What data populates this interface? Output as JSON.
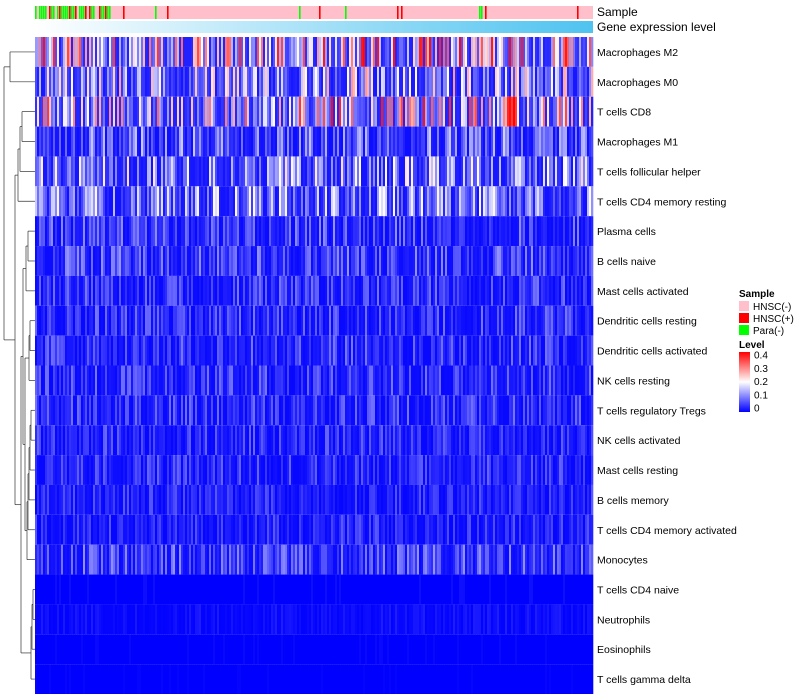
{
  "chart_data": {
    "type": "heatmap",
    "title": "",
    "annotation_tracks": [
      {
        "name": "Sample",
        "kind": "categorical"
      },
      {
        "name": "Gene expression level",
        "kind": "continuous-gradient"
      }
    ],
    "rows": [
      {
        "label": "Macrophages M2",
        "mean": 0.17
      },
      {
        "label": "Macrophages M0",
        "mean": 0.12
      },
      {
        "label": "T cells CD8",
        "mean": 0.17
      },
      {
        "label": "Macrophages M1",
        "mean": 0.07
      },
      {
        "label": "T cells follicular helper",
        "mean": 0.1
      },
      {
        "label": "T cells CD4 memory resting",
        "mean": 0.09
      },
      {
        "label": "Plasma cells",
        "mean": 0.05
      },
      {
        "label": "B cells naive",
        "mean": 0.05
      },
      {
        "label": "Mast cells activated",
        "mean": 0.04
      },
      {
        "label": "Dendritic cells resting",
        "mean": 0.04
      },
      {
        "label": "Dendritic cells activated",
        "mean": 0.04
      },
      {
        "label": "NK cells resting",
        "mean": 0.04
      },
      {
        "label": "T cells regulatory  Tregs",
        "mean": 0.04
      },
      {
        "label": "NK cells activated",
        "mean": 0.035
      },
      {
        "label": "Mast cells resting",
        "mean": 0.035
      },
      {
        "label": "B cells memory",
        "mean": 0.03
      },
      {
        "label": "T cells CD4 memory activated",
        "mean": 0.03
      },
      {
        "label": "Monocytes",
        "mean": 0.05
      },
      {
        "label": "T cells CD4 naive",
        "mean": 0.005
      },
      {
        "label": "Neutrophils",
        "mean": 0.01
      },
      {
        "label": "Eosinophils",
        "mean": 0.003
      },
      {
        "label": "T cells gamma delta",
        "mean": 0.002
      }
    ],
    "legends": {
      "sample": {
        "title": "Sample",
        "items": [
          {
            "label": "HNSC(-)",
            "color": "#ffc0cb"
          },
          {
            "label": "HNSC(+)",
            "color": "#ff0000"
          },
          {
            "label": "Para(-)",
            "color": "#00ff00"
          }
        ]
      },
      "level": {
        "title": "Level",
        "ticks": [
          "0.4",
          "0.3",
          "0.2",
          "0.1",
          "0"
        ],
        "range": [
          0,
          0.4
        ],
        "colors": {
          "low": "#0000ff",
          "mid": "#ffffff",
          "high": "#ff0000"
        }
      }
    },
    "gradient_colors": {
      "start": "#ffffff",
      "end": "#4fc3f0"
    }
  }
}
